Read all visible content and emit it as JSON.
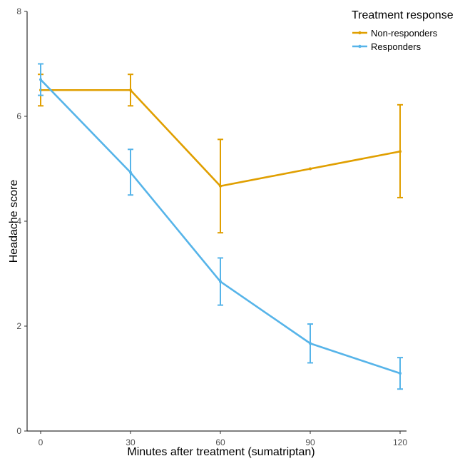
{
  "chart_data": {
    "type": "line",
    "title": "",
    "xlabel": "Minutes after treatment (sumatriptan)",
    "ylabel": "Headache score",
    "x": [
      0,
      30,
      60,
      90,
      120
    ],
    "x_ticks": [
      0,
      30,
      60,
      90,
      120
    ],
    "y_ticks": [
      0,
      2,
      4,
      6,
      8
    ],
    "xlim": [
      0,
      120
    ],
    "ylim": [
      0,
      8
    ],
    "grid": false,
    "legend": {
      "title": "Treatment response",
      "position": "top-right"
    },
    "series": [
      {
        "name": "Non-responders",
        "color": "#E09F00",
        "values": [
          6.5,
          6.5,
          4.67,
          5.0,
          5.33
        ],
        "error_low": [
          6.2,
          6.2,
          3.78,
          5.0,
          4.45
        ],
        "error_high": [
          6.8,
          6.8,
          5.56,
          5.0,
          6.22
        ]
      },
      {
        "name": "Responders",
        "color": "#56B4E9",
        "values": [
          6.7,
          4.93,
          2.85,
          1.67,
          1.1
        ],
        "error_low": [
          6.4,
          4.5,
          2.4,
          1.3,
          0.8
        ],
        "error_high": [
          7.0,
          5.37,
          3.3,
          2.04,
          1.4
        ]
      }
    ]
  }
}
